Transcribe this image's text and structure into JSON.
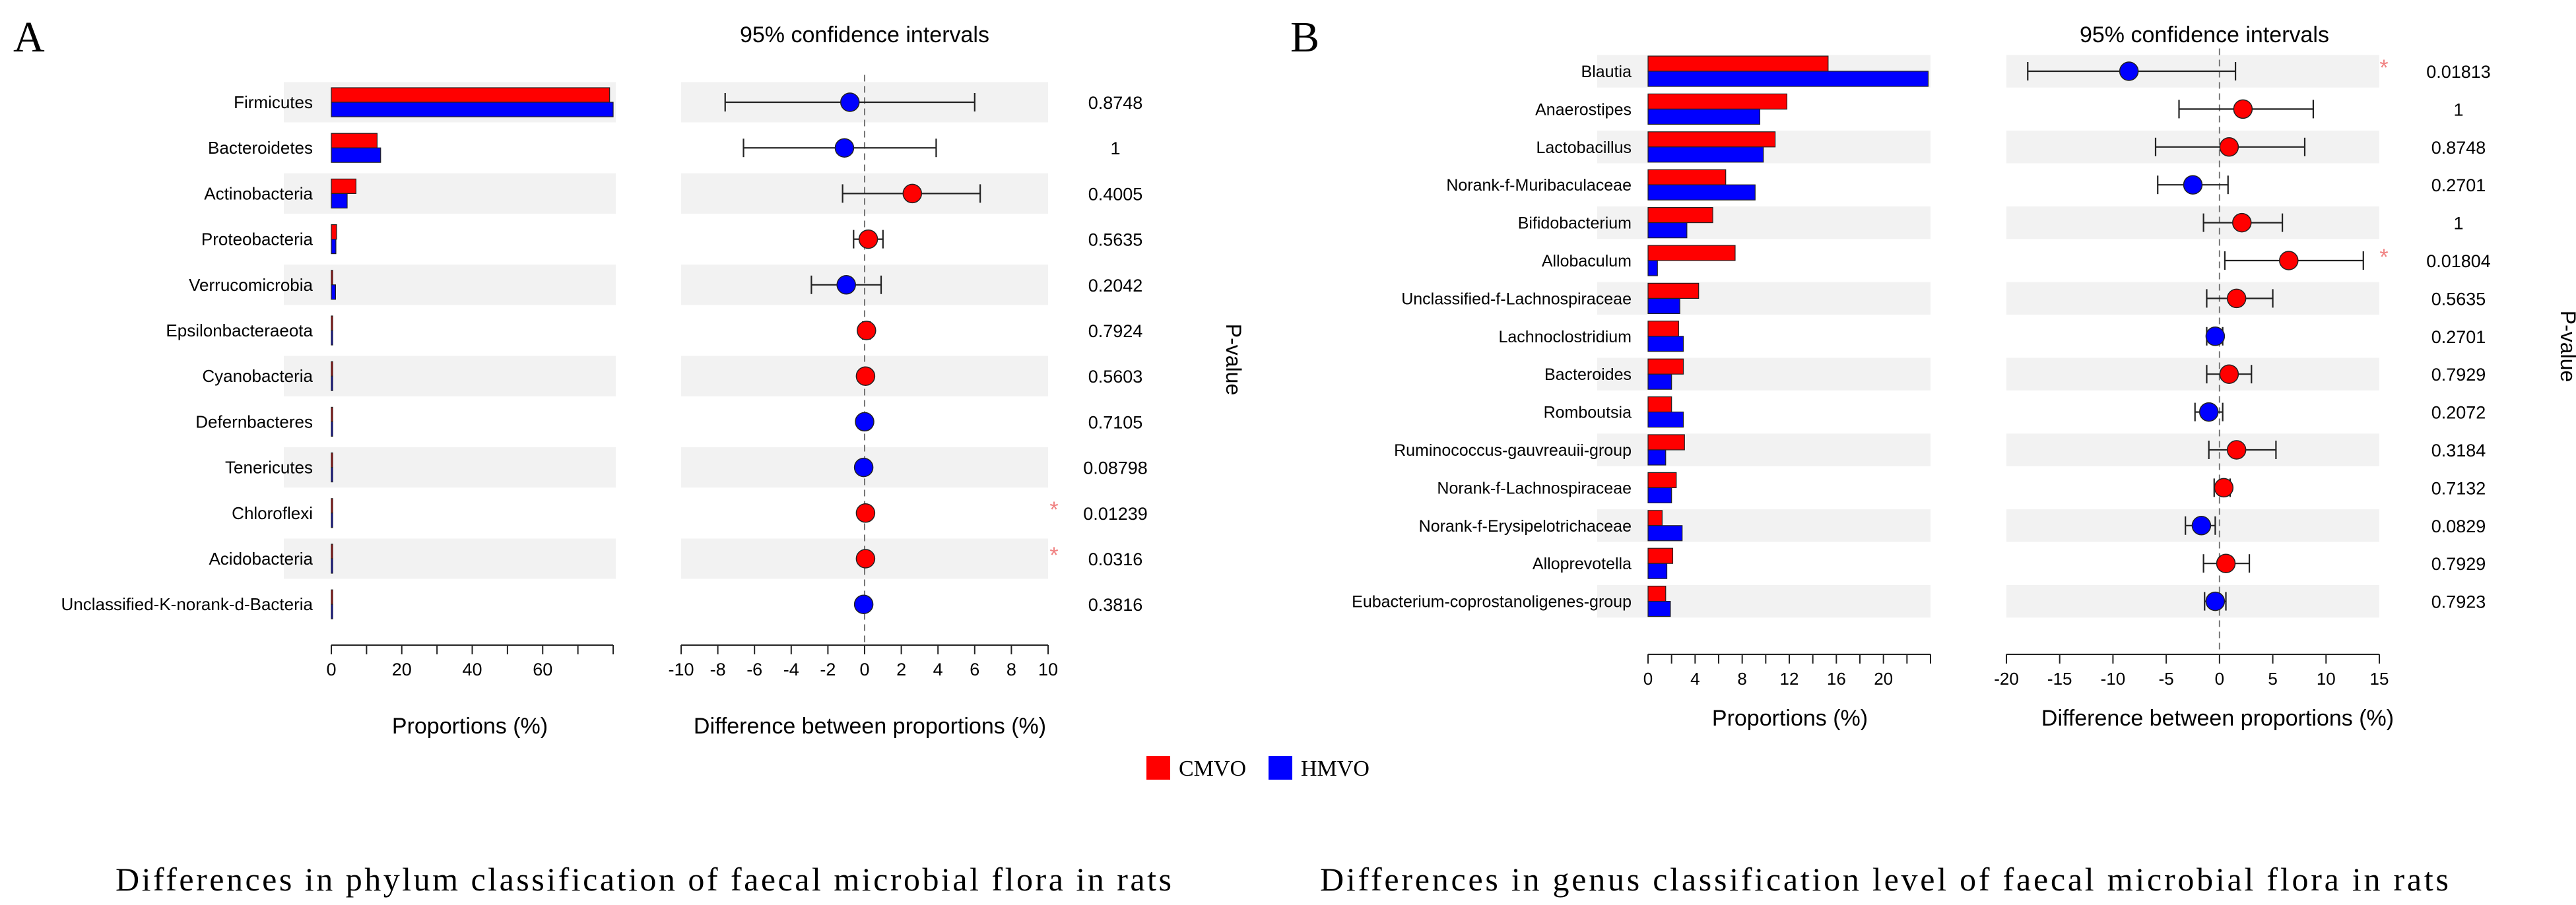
{
  "legend": {
    "items": [
      {
        "label": "CMVO",
        "color": "#ff0000"
      },
      {
        "label": "HMVO",
        "color": "#0000ff"
      }
    ],
    "placement": "bottom-center"
  },
  "colors": {
    "group1": "#ff0000",
    "group2": "#0000ff",
    "stripe": "#f2f2f2",
    "star": "#f08080"
  },
  "panels": {
    "A": {
      "label": "A",
      "ci_title": "95% confidence intervals",
      "xlabel_bar": "Proportions (%)",
      "xlabel_diff": "Difference between proportions (%)",
      "pvalue_label": "P-value",
      "caption": "Differences in phylum classification of faecal microbial flora in rats"
    },
    "B": {
      "label": "B",
      "ci_title": "95% confidence intervals",
      "xlabel_bar": "Proportions (%)",
      "xlabel_diff": "Difference between proportions (%)",
      "pvalue_label": "P-value",
      "caption": "Differences in genus classification level of faecal microbial flora in rats"
    }
  },
  "chart_data": [
    {
      "type": "bar",
      "panel": "A",
      "orientation": "horizontal",
      "xlabel": "Proportions (%)",
      "xlim": [
        0,
        80
      ],
      "xticks": [
        0,
        20,
        40,
        60
      ],
      "categories": [
        "Firmicutes",
        "Bacteroidetes",
        "Actinobacteria",
        "Proteobacteria",
        "Verrucomicrobia",
        "Epsilonbacteraeota",
        "Cyanobacteria",
        "Defernbacteres",
        "Tenericutes",
        "Chloroflexi",
        "Acidobacteria",
        "Unclassified-K-norank-d-Bacteria"
      ],
      "series": [
        {
          "name": "CMVO",
          "color": "#ff0000",
          "values": [
            79.0,
            13.0,
            7.0,
            1.5,
            0.3,
            0.2,
            0.2,
            0.1,
            0.1,
            0.1,
            0.1,
            0.05
          ]
        },
        {
          "name": "HMVO",
          "color": "#0000ff",
          "values": [
            80.0,
            14.0,
            4.5,
            1.3,
            1.2,
            0.2,
            0.2,
            0.1,
            0.1,
            0.05,
            0.05,
            0.05
          ]
        }
      ]
    },
    {
      "type": "scatter",
      "panel": "A",
      "subtype": "confidence-interval",
      "title": "95% confidence intervals",
      "xlabel": "Difference between proportions (%)",
      "xlim": [
        -10,
        10
      ],
      "xticks": [
        -10,
        -8,
        -6,
        -4,
        -2,
        0,
        2,
        4,
        6,
        8,
        10
      ],
      "categories": [
        "Firmicutes",
        "Bacteroidetes",
        "Actinobacteria",
        "Proteobacteria",
        "Verrucomicrobia",
        "Epsilonbacteraeota",
        "Cyanobacteria",
        "Defernbacteres",
        "Tenericutes",
        "Chloroflexi",
        "Acidobacteria",
        "Unclassified-K-norank-d-Bacteria"
      ],
      "estimate": [
        -0.8,
        -1.1,
        2.6,
        0.2,
        -1.0,
        0.1,
        0.05,
        0.0,
        -0.05,
        0.05,
        0.05,
        -0.05
      ],
      "ci_low": [
        -7.6,
        -6.6,
        -1.2,
        -0.6,
        -2.9,
        -0.1,
        -0.1,
        -0.1,
        -0.15,
        -0.05,
        -0.05,
        -0.1
      ],
      "ci_high": [
        6.0,
        3.9,
        6.3,
        1.0,
        0.9,
        0.3,
        0.2,
        0.1,
        0.05,
        0.15,
        0.15,
        0.0
      ],
      "point_group": [
        "HMVO",
        "HMVO",
        "CMVO",
        "CMVO",
        "HMVO",
        "CMVO",
        "CMVO",
        "HMVO",
        "HMVO",
        "CMVO",
        "CMVO",
        "HMVO"
      ],
      "p_values": [
        "0.8748",
        "1",
        "0.4005",
        "0.5635",
        "0.2042",
        "0.7924",
        "0.5603",
        "0.7105",
        "0.08798",
        "0.01239",
        "0.0316",
        "0.3816"
      ],
      "significant": [
        false,
        false,
        false,
        false,
        false,
        false,
        false,
        false,
        false,
        true,
        true,
        false
      ],
      "significance_mark": "*"
    },
    {
      "type": "bar",
      "panel": "B",
      "orientation": "horizontal",
      "xlabel": "Proportions (%)",
      "xlim": [
        0,
        24
      ],
      "xticks": [
        0,
        4,
        8,
        12,
        16,
        20
      ],
      "categories": [
        "Blautia",
        "Anaerostipes",
        "Lactobacillus",
        "Norank-f-Muribaculaceae",
        "Bifidobacterium",
        "Allobaculum",
        "Unclassified-f-Lachnospiraceae",
        "Lachnoclostridium",
        "Bacteroides",
        "Romboutsia",
        "Ruminococcus-gauvreauii-group",
        "Norank-f-Lachnospiraceae",
        "Norank-f-Erysipelotrichaceae",
        "Alloprevotella",
        "Eubacterium-coprostanoligenes-group"
      ],
      "series": [
        {
          "name": "CMVO",
          "color": "#ff0000",
          "values": [
            15.3,
            11.8,
            10.8,
            6.6,
            5.5,
            7.4,
            4.3,
            2.6,
            3.0,
            2.0,
            3.1,
            2.4,
            1.2,
            2.1,
            1.5
          ]
        },
        {
          "name": "HMVO",
          "color": "#0000ff",
          "values": [
            23.8,
            9.5,
            9.8,
            9.1,
            3.3,
            0.8,
            2.7,
            3.0,
            2.0,
            3.0,
            1.5,
            2.0,
            2.9,
            1.6,
            1.9
          ]
        }
      ]
    },
    {
      "type": "scatter",
      "panel": "B",
      "subtype": "confidence-interval",
      "title": "95% confidence intervals",
      "xlabel": "Difference between proportions (%)",
      "xlim": [
        -20,
        15
      ],
      "xticks": [
        -20,
        -15,
        -10,
        -5,
        0,
        5,
        10,
        15
      ],
      "categories": [
        "Blautia",
        "Anaerostipes",
        "Lactobacillus",
        "Norank-f-Muribaculaceae",
        "Bifidobacterium",
        "Allobaculum",
        "Unclassified-f-Lachnospiraceae",
        "Lachnoclostridium",
        "Bacteroides",
        "Romboutsia",
        "Ruminococcus-gauvreauii-group",
        "Norank-f-Lachnospiraceae",
        "Norank-f-Erysipelotrichaceae",
        "Alloprevotella",
        "Eubacterium-coprostanoligenes-group"
      ],
      "estimate": [
        -8.5,
        2.2,
        0.9,
        -2.5,
        2.1,
        6.5,
        1.6,
        -0.4,
        0.9,
        -1.0,
        1.6,
        0.4,
        -1.7,
        0.6,
        -0.4
      ],
      "ci_low": [
        -18.0,
        -3.8,
        -6.0,
        -5.8,
        -1.5,
        0.5,
        -1.2,
        -1.2,
        -1.2,
        -2.3,
        -1.0,
        -0.5,
        -3.2,
        -1.5,
        -1.4
      ],
      "ci_high": [
        1.5,
        8.8,
        8.0,
        0.8,
        5.9,
        13.5,
        5.0,
        0.3,
        3.0,
        0.3,
        5.3,
        1.0,
        -0.4,
        2.8,
        0.6
      ],
      "point_group": [
        "HMVO",
        "CMVO",
        "CMVO",
        "HMVO",
        "CMVO",
        "CMVO",
        "CMVO",
        "HMVO",
        "CMVO",
        "HMVO",
        "CMVO",
        "CMVO",
        "HMVO",
        "CMVO",
        "HMVO"
      ],
      "p_values": [
        "0.01813",
        "1",
        "0.8748",
        "0.2701",
        "1",
        "0.01804",
        "0.5635",
        "0.2701",
        "0.7929",
        "0.2072",
        "0.3184",
        "0.7132",
        "0.0829",
        "0.7929",
        "0.7923"
      ],
      "significant": [
        true,
        false,
        false,
        false,
        false,
        true,
        false,
        false,
        false,
        false,
        false,
        false,
        false,
        false,
        false
      ],
      "significance_mark": "*"
    }
  ]
}
